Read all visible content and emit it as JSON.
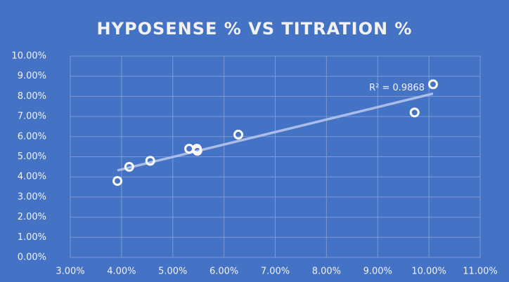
{
  "chart_data": {
    "type": "scatter",
    "title": "HYPOSENSE % VS TITRATION %",
    "series": [
      {
        "name": "Hyposense",
        "color": "#ffffff",
        "x": [
          3.92,
          4.15,
          4.56,
          5.32,
          5.47,
          5.48,
          6.28,
          9.72,
          10.08
        ],
        "values": [
          3.8,
          4.5,
          4.8,
          5.4,
          5.4,
          5.3,
          6.1,
          7.2,
          8.6
        ]
      }
    ],
    "trendline": {
      "color": "#a9bde8",
      "annotation": "R² = 0.9868"
    },
    "xlim": [
      3,
      11
    ],
    "xticks": [
      {
        "value": 3,
        "label": "3.00%"
      },
      {
        "value": 4,
        "label": "4.00%"
      },
      {
        "value": 5,
        "label": "5.00%"
      },
      {
        "value": 6,
        "label": "6.00%"
      },
      {
        "value": 7,
        "label": "7.00%"
      },
      {
        "value": 8,
        "label": "8.00%"
      },
      {
        "value": 9,
        "label": "9.00%"
      },
      {
        "value": 10,
        "label": "10.00%"
      },
      {
        "value": 11,
        "label": "11.00%"
      }
    ],
    "ylim": [
      0,
      10
    ],
    "yticks": [
      {
        "value": 0,
        "label": "0.00%"
      },
      {
        "value": 1,
        "label": "1.00%"
      },
      {
        "value": 2,
        "label": "2.00%"
      },
      {
        "value": 3,
        "label": "3.00%"
      },
      {
        "value": 4,
        "label": "4.00%"
      },
      {
        "value": 5,
        "label": "5.00%"
      },
      {
        "value": 6,
        "label": "6.00%"
      },
      {
        "value": 7,
        "label": "7.00%"
      },
      {
        "value": 8,
        "label": "8.00%"
      },
      {
        "value": 9,
        "label": "9.00%"
      },
      {
        "value": 10,
        "label": "10.00%"
      }
    ],
    "grid": true
  }
}
